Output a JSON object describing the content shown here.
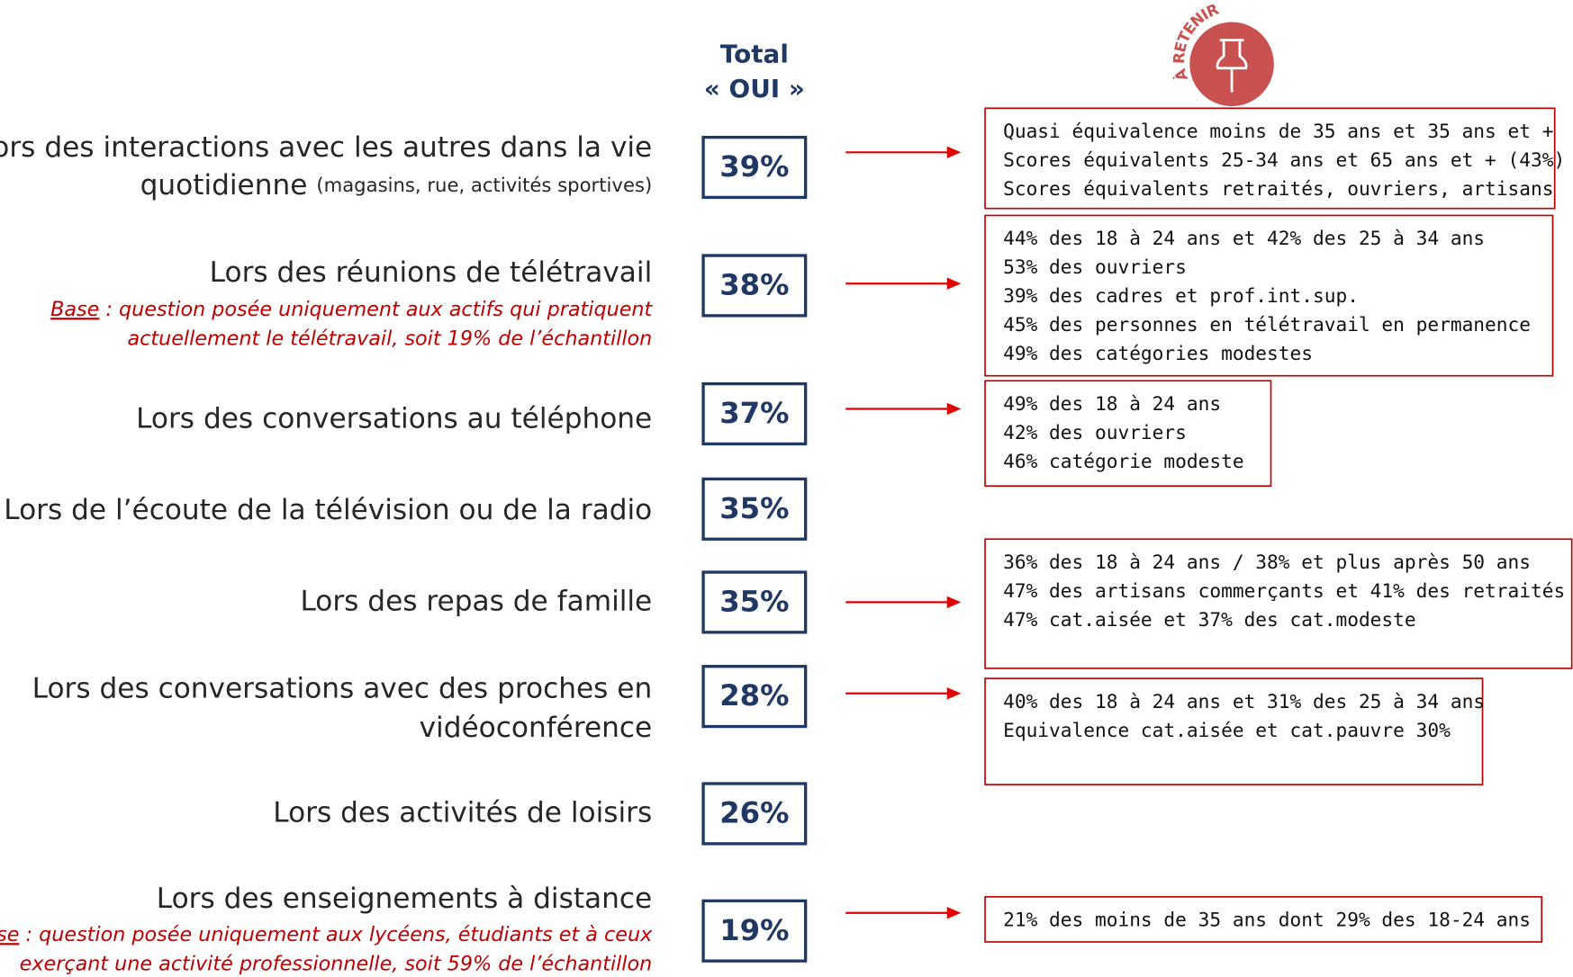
{
  "header": {
    "total": [
      "Total",
      "« OUI »"
    ],
    "badge": "À RETENIR"
  },
  "rows": [
    {
      "label": [
        "Lors des interactions avec les autres dans la vie",
        "quotidienne"
      ],
      "label_detail": "(magasins, rue, activités sportives)",
      "value": "39%",
      "notes": [
        "Quasi équivalence moins de 35 ans et 35 ans et +",
        "Scores équivalents 25-34 ans et 65 ans et + (43%)",
        "Scores équivalents retraités, ouvriers, artisans"
      ]
    },
    {
      "label": [
        "Lors des réunions de télétravail"
      ],
      "highlight": true,
      "base": {
        "word": "Base",
        "lines": [
          " : question posée uniquement aux actifs qui pratiquent",
          "actuellement le télétravail, soit 19% de l’échantillon"
        ]
      },
      "value": "38%",
      "notes": [
        "44% des 18 à 24 ans et 42% des 25 à 34 ans",
        "53% des ouvriers",
        "39% des cadres et prof.int.sup.",
        "45% des personnes en télétravail en permanence",
        "49% des catégories modestes"
      ]
    },
    {
      "label": [
        "Lors des conversations au téléphone"
      ],
      "value": "37%",
      "notes": [
        "49% des 18 à 24 ans",
        "42% des ouvriers",
        "46% catégorie modeste"
      ]
    },
    {
      "label": [
        "Lors de l’écoute de la télévision ou de la radio"
      ],
      "value": "35%"
    },
    {
      "label": [
        "Lors des repas de famille"
      ],
      "value": "35%",
      "notes": [
        "36% des 18 à 24 ans / 38% et plus après 50 ans",
        "47% des artisans commerçants et 41% des retraités",
        "47% cat.aisée et 37% des cat.modeste"
      ]
    },
    {
      "label": [
        "Lors des conversations avec  des proches en",
        "vidéoconférence"
      ],
      "highlight": true,
      "value": "28%",
      "notes": [
        "40% des 18 à 24 ans et 31% des 25 à 34 ans",
        "Equivalence cat.aisée et cat.pauvre 30%"
      ]
    },
    {
      "label": [
        "Lors des activités de loisirs"
      ],
      "value": "26%"
    },
    {
      "label": [
        "Lors des enseignements à distance"
      ],
      "highlight": true,
      "base": {
        "word": "Base",
        "lines": [
          " : question posée uniquement aux lycéens, étudiants et à ceux",
          "exerçant une activité professionnelle, soit 59% de l’échantillon"
        ]
      },
      "value": "19%",
      "notes": [
        "21% des moins de 35 ans dont 29% des 18-24 ans"
      ]
    }
  ]
}
